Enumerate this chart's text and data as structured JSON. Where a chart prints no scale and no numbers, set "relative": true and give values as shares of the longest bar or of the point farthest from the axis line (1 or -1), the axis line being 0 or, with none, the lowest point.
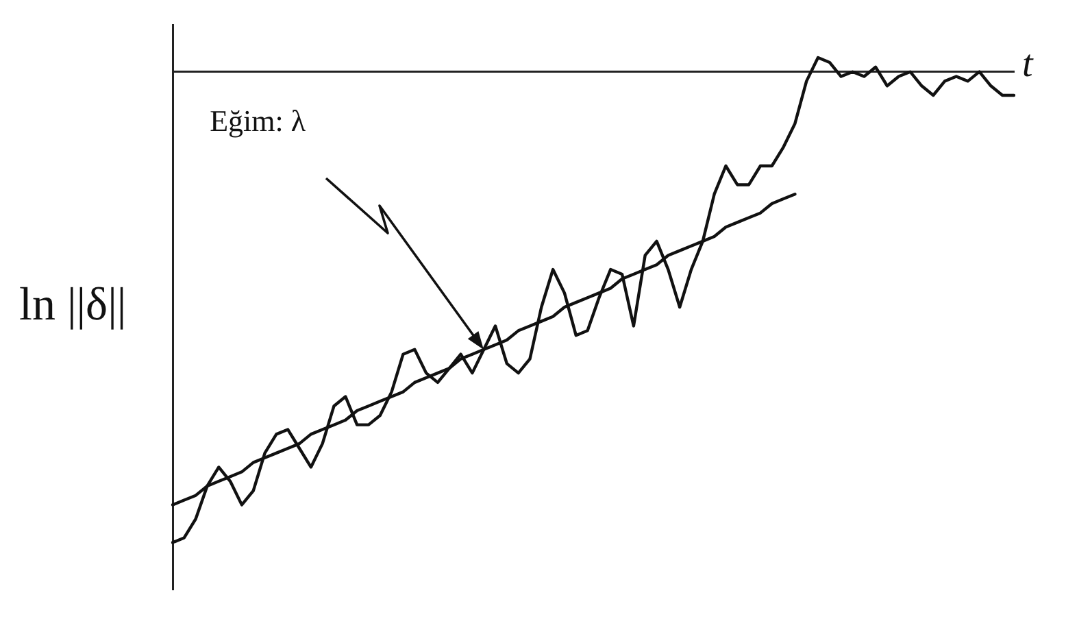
{
  "chart_data": {
    "type": "line",
    "relative": true,
    "xlabel": "t",
    "ylabel": "ln ||δ||",
    "legend": false,
    "marker": "none",
    "line_style": "solid",
    "annotations": [
      "Eğim: λ"
    ],
    "categories": [
      null,
      null,
      null,
      null,
      null,
      null,
      null,
      null,
      null,
      null,
      null,
      null,
      null,
      null,
      null,
      null,
      null,
      null,
      null,
      null,
      null,
      null,
      null,
      null,
      null,
      null,
      null,
      null,
      null,
      null,
      null,
      null,
      null,
      null,
      null,
      null,
      null,
      null,
      null,
      null,
      null,
      null,
      null,
      null,
      null,
      null,
      null,
      null,
      null,
      null,
      null,
      null,
      null,
      null,
      null,
      null,
      null,
      null,
      null,
      null,
      null,
      null,
      null,
      null,
      null,
      null,
      null,
      null,
      null,
      null,
      null,
      null,
      null,
      null
    ],
    "series": [
      {
        "color": "#111111",
        "values": [
          -1,
          -0.99,
          -0.95,
          -0.88,
          -0.84,
          -0.87,
          -0.92,
          -0.89,
          -0.81,
          -0.77,
          -0.76,
          -0.8,
          -0.84,
          -0.79,
          -0.71,
          -0.69,
          -0.75,
          -0.75,
          -0.73,
          -0.68,
          -0.6,
          -0.59,
          -0.64,
          -0.66,
          -0.63,
          -0.6,
          -0.64,
          -0.59,
          -0.54,
          -0.62,
          -0.64,
          -0.61,
          -0.5,
          -0.42,
          -0.47,
          -0.56,
          -0.55,
          -0.48,
          -0.42,
          -0.43,
          -0.54,
          -0.39,
          -0.36,
          -0.42,
          -0.5,
          -0.42,
          -0.36,
          -0.26,
          -0.2,
          -0.24,
          -0.24,
          -0.2,
          -0.2,
          -0.16,
          -0.11,
          -0.02,
          0.03,
          0.02,
          -0.01,
          0,
          -0.01,
          0.01,
          -0.03,
          -0.01,
          0,
          -0.03,
          -0.05,
          -0.02,
          -0.01,
          -0.02,
          0,
          -0.03,
          -0.05,
          -0.05
        ]
      },
      {
        "type": "line",
        "color": "#111111",
        "values": [
          -0.92,
          -0.91,
          -0.9,
          -0.88,
          -0.87,
          -0.86,
          -0.85,
          -0.83,
          -0.82,
          -0.81,
          -0.8,
          -0.79,
          -0.77,
          -0.76,
          -0.75,
          -0.74,
          -0.72,
          -0.71,
          -0.7,
          -0.69,
          -0.68,
          -0.66,
          -0.65,
          -0.64,
          -0.63,
          -0.61,
          -0.6,
          -0.59,
          -0.58,
          -0.57,
          -0.55,
          -0.54,
          -0.53,
          -0.52,
          -0.5,
          -0.49,
          -0.48,
          -0.47,
          -0.46,
          -0.44,
          -0.43,
          -0.42,
          -0.41,
          -0.39,
          -0.38,
          -0.37,
          -0.36,
          -0.35,
          -0.33,
          -0.32,
          -0.31,
          -0.3,
          -0.28,
          -0.27,
          -0.26,
          null,
          null,
          null,
          null,
          null,
          null,
          null,
          null,
          null,
          null,
          null,
          null,
          null,
          null,
          null,
          null,
          null,
          null,
          null
        ]
      }
    ]
  }
}
